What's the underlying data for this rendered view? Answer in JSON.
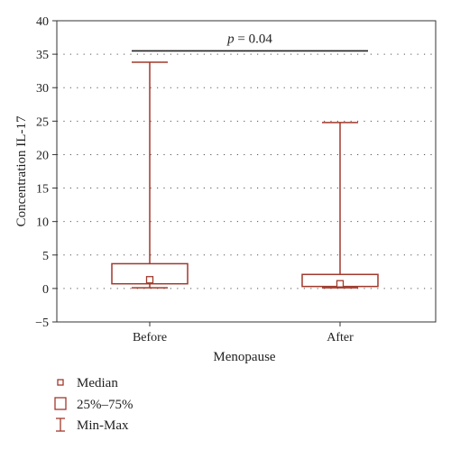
{
  "chart_data": {
    "type": "box",
    "xlabel": "Menopause",
    "ylabel": "Concentration IL-17",
    "ylim": [
      -5,
      40
    ],
    "yticks": [
      -5,
      0,
      5,
      10,
      15,
      20,
      25,
      30,
      35,
      40
    ],
    "grid": "dotted",
    "categories": [
      "Before",
      "After"
    ],
    "groups": [
      {
        "name": "Before",
        "median": 1.3,
        "q1": 0.7,
        "q3": 3.7,
        "min": 0.1,
        "max": 33.8
      },
      {
        "name": "After",
        "median": 0.7,
        "q1": 0.3,
        "q3": 2.1,
        "min": 0.1,
        "max": 24.8
      }
    ],
    "annotation": {
      "p_symbol": "p",
      "p_value_text": " = 0.04",
      "bracket_y": 35.5
    },
    "legend": [
      {
        "symbol": "median",
        "label": "Median"
      },
      {
        "symbol": "box",
        "label": "25%–75%"
      },
      {
        "symbol": "whisker",
        "label": "Min-Max"
      }
    ],
    "color": "#a0392b"
  }
}
